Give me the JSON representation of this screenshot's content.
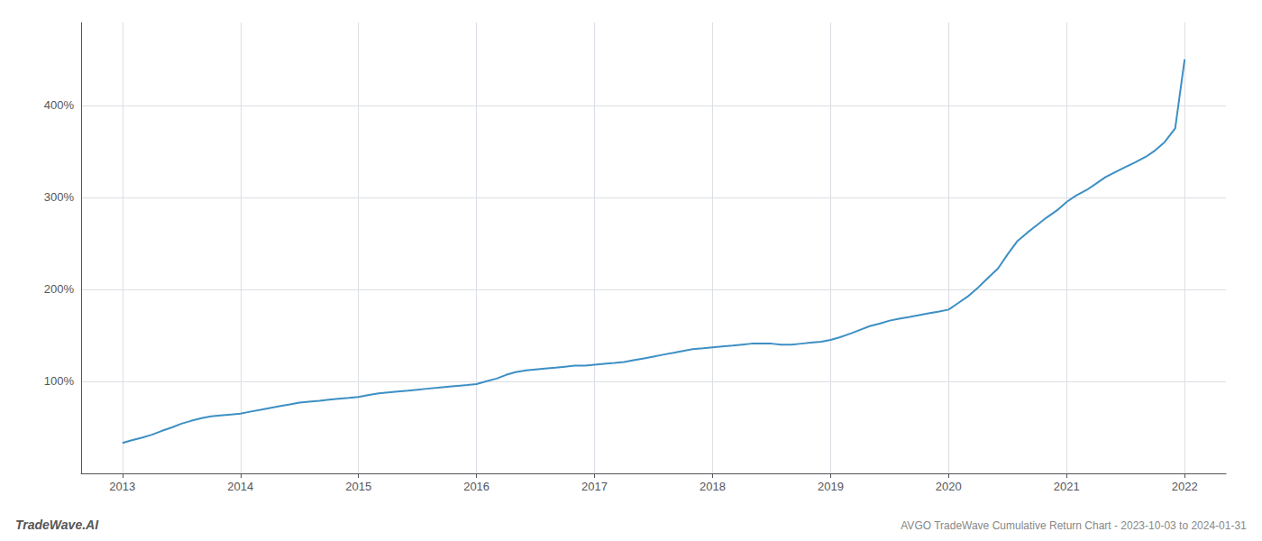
{
  "chart_data": {
    "type": "line",
    "title": "AVGO TradeWave Cumulative Return Chart - 2023-10-03 to 2024-01-31",
    "annotation": "TradeWave.AI",
    "color": "#3d8fc4",
    "x": [
      2013.0,
      2013.08,
      2013.17,
      2013.25,
      2013.33,
      2013.42,
      2013.5,
      2013.58,
      2013.67,
      2013.75,
      2013.83,
      2013.92,
      2014.0,
      2014.08,
      2014.17,
      2014.25,
      2014.33,
      2014.42,
      2014.5,
      2014.58,
      2014.67,
      2014.75,
      2014.83,
      2014.92,
      2015.0,
      2015.08,
      2015.17,
      2015.25,
      2015.33,
      2015.42,
      2015.5,
      2015.58,
      2015.67,
      2015.75,
      2015.83,
      2015.92,
      2016.0,
      2016.08,
      2016.17,
      2016.25,
      2016.33,
      2016.42,
      2016.5,
      2016.58,
      2016.67,
      2016.75,
      2016.83,
      2016.92,
      2017.0,
      2017.08,
      2017.17,
      2017.25,
      2017.33,
      2017.42,
      2017.5,
      2017.58,
      2017.67,
      2017.75,
      2017.83,
      2017.92,
      2018.0,
      2018.08,
      2018.17,
      2018.25,
      2018.33,
      2018.42,
      2018.5,
      2018.58,
      2018.67,
      2018.75,
      2018.83,
      2018.92,
      2019.0,
      2019.08,
      2019.17,
      2019.25,
      2019.33,
      2019.42,
      2019.5,
      2019.58,
      2019.67,
      2019.75,
      2019.83,
      2019.92,
      2020.0,
      2020.08,
      2020.17,
      2020.25,
      2020.33,
      2020.42,
      2020.5,
      2020.58,
      2020.67,
      2020.75,
      2020.83,
      2020.92,
      2021.0,
      2021.08,
      2021.17,
      2021.25,
      2021.33,
      2021.42,
      2021.5,
      2021.58,
      2021.67,
      2021.75,
      2021.83,
      2021.92,
      2022.0
    ],
    "values": [
      33,
      36,
      39,
      42,
      46,
      50,
      54,
      57,
      60,
      62,
      63,
      64,
      65,
      67,
      69,
      71,
      73,
      75,
      77,
      78,
      79,
      80,
      81,
      82,
      83,
      85,
      87,
      88,
      89,
      90,
      91,
      92,
      93,
      94,
      95,
      96,
      97,
      100,
      103,
      107,
      110,
      112,
      113,
      114,
      115,
      116,
      117,
      117,
      118,
      119,
      120,
      121,
      123,
      125,
      127,
      129,
      131,
      133,
      135,
      136,
      137,
      138,
      139,
      140,
      141,
      141,
      141,
      140,
      140,
      141,
      142,
      143,
      145,
      148,
      152,
      156,
      160,
      163,
      166,
      168,
      170,
      172,
      174,
      176,
      178,
      185,
      193,
      202,
      212,
      223,
      238,
      252,
      262,
      270,
      278,
      286,
      295,
      302,
      308,
      315,
      322,
      328,
      333,
      338,
      344,
      351,
      360,
      375,
      450
    ],
    "xlim": [
      2012.65,
      2022.35
    ],
    "xticks": [
      2013,
      2014,
      2015,
      2016,
      2017,
      2018,
      2019,
      2020,
      2021,
      2022
    ],
    "ylim": [
      0,
      490
    ],
    "yticks": [
      {
        "value": 100,
        "label": "100%"
      },
      {
        "value": 200,
        "label": "200%"
      },
      {
        "value": 300,
        "label": "300%"
      },
      {
        "value": 400,
        "label": "400%"
      }
    ],
    "grid": true
  }
}
